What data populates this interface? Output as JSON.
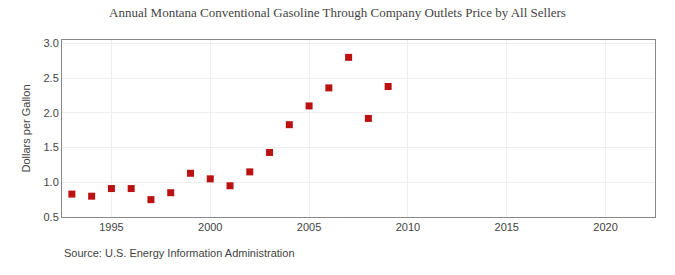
{
  "chart_data": {
    "type": "scatter",
    "title": "Annual Montana Conventional Gasoline Through Company Outlets Price by All Sellers",
    "ylabel": "Dollars per Gallon",
    "annotations": [
      "Source: U.S. Energy Information Administration"
    ],
    "x": [
      1993,
      1994,
      1995,
      1996,
      1997,
      1998,
      1999,
      2000,
      2001,
      2002,
      2003,
      2004,
      2005,
      2006,
      2007,
      2008,
      2009,
      2010
    ],
    "values": [
      0.83,
      0.8,
      0.91,
      0.91,
      0.75,
      0.85,
      1.13,
      1.05,
      0.95,
      1.15,
      1.43,
      1.83,
      2.1,
      2.36,
      2.8,
      1.92,
      2.38,
      null
    ],
    "color": "#bb1111",
    "marker": "square",
    "xlim": [
      1992.5,
      2022.5
    ],
    "ylim": [
      0.5,
      3.05
    ],
    "xticks": [
      1995,
      2000,
      2005,
      2010,
      2015,
      2020
    ],
    "yticks": [
      0.5,
      {
        "value": 1,
        "label": "1.0"
      },
      1.5,
      {
        "value": 2,
        "label": "2.0"
      },
      2.5,
      {
        "value": 3,
        "label": "3.0"
      }
    ],
    "grid": true
  }
}
